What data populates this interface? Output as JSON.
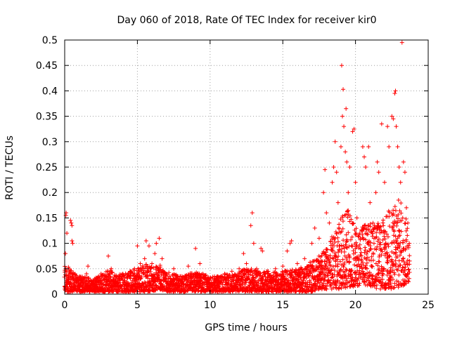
{
  "chart_data": {
    "type": "scatter",
    "title": "Day 060 of 2018, Rate Of TEC Index for receiver kir0",
    "xlabel": "GPS time / hours",
    "ylabel": "ROTI / TECUs",
    "xlim": [
      0,
      25
    ],
    "ylim": [
      0,
      0.5
    ],
    "grid": true,
    "marker": "+",
    "color": "#ff0000",
    "x_ticks": [
      0,
      5,
      10,
      15,
      20,
      25
    ],
    "x_tick_labels": [
      "0",
      "5",
      "10",
      "15",
      "20",
      "25"
    ],
    "y_ticks": [
      0,
      0.05,
      0.1,
      0.15,
      0.2,
      0.25,
      0.3,
      0.35,
      0.4,
      0.45,
      0.5
    ],
    "y_tick_labels": [
      "0",
      "0.05",
      "0.1",
      "0.15",
      "0.2",
      "0.25",
      "0.3",
      "0.35",
      "0.4",
      "0.45",
      "0.5"
    ],
    "series": [
      {
        "name": "ROTI",
        "points": [
          [
            0.05,
            0.08
          ],
          [
            0.08,
            0.155
          ],
          [
            0.1,
            0.16
          ],
          [
            0.15,
            0.12
          ],
          [
            0.2,
            0.03
          ],
          [
            0.3,
            0.05
          ],
          [
            0.4,
            0.145
          ],
          [
            0.45,
            0.14
          ],
          [
            0.5,
            0.135
          ],
          [
            0.5,
            0.105
          ],
          [
            0.55,
            0.1
          ],
          [
            0.7,
            0.04
          ],
          [
            1.0,
            0.03
          ],
          [
            1.5,
            0.04
          ],
          [
            1.6,
            0.055
          ],
          [
            2.0,
            0.025
          ],
          [
            2.5,
            0.04
          ],
          [
            3.0,
            0.075
          ],
          [
            3.2,
            0.05
          ],
          [
            3.5,
            0.03
          ],
          [
            4.0,
            0.04
          ],
          [
            4.5,
            0.045
          ],
          [
            4.8,
            0.05
          ],
          [
            5.0,
            0.095
          ],
          [
            5.2,
            0.06
          ],
          [
            5.5,
            0.07
          ],
          [
            5.6,
            0.105
          ],
          [
            5.8,
            0.095
          ],
          [
            6.0,
            0.06
          ],
          [
            6.2,
            0.08
          ],
          [
            6.3,
            0.1
          ],
          [
            6.5,
            0.11
          ],
          [
            6.7,
            0.07
          ],
          [
            7.0,
            0.04
          ],
          [
            7.5,
            0.05
          ],
          [
            8.0,
            0.035
          ],
          [
            8.5,
            0.055
          ],
          [
            9.0,
            0.09
          ],
          [
            9.3,
            0.06
          ],
          [
            9.5,
            0.04
          ],
          [
            10.0,
            0.03
          ],
          [
            10.5,
            0.035
          ],
          [
            11.0,
            0.04
          ],
          [
            11.5,
            0.045
          ],
          [
            12.0,
            0.05
          ],
          [
            12.3,
            0.08
          ],
          [
            12.5,
            0.06
          ],
          [
            12.8,
            0.135
          ],
          [
            12.9,
            0.16
          ],
          [
            13.0,
            0.1
          ],
          [
            13.2,
            0.05
          ],
          [
            13.5,
            0.09
          ],
          [
            13.6,
            0.085
          ],
          [
            14.0,
            0.045
          ],
          [
            14.5,
            0.05
          ],
          [
            15.0,
            0.055
          ],
          [
            15.3,
            0.085
          ],
          [
            15.5,
            0.1
          ],
          [
            15.6,
            0.105
          ],
          [
            16.0,
            0.06
          ],
          [
            16.5,
            0.07
          ],
          [
            17.0,
            0.1
          ],
          [
            17.2,
            0.13
          ],
          [
            17.5,
            0.11
          ],
          [
            17.8,
            0.2
          ],
          [
            17.9,
            0.245
          ],
          [
            18.0,
            0.16
          ],
          [
            18.2,
            0.14
          ],
          [
            18.4,
            0.22
          ],
          [
            18.5,
            0.25
          ],
          [
            18.6,
            0.3
          ],
          [
            18.7,
            0.24
          ],
          [
            18.8,
            0.18
          ],
          [
            19.0,
            0.29
          ],
          [
            19.05,
            0.45
          ],
          [
            19.1,
            0.35
          ],
          [
            19.15,
            0.403
          ],
          [
            19.2,
            0.33
          ],
          [
            19.3,
            0.28
          ],
          [
            19.35,
            0.365
          ],
          [
            19.4,
            0.26
          ],
          [
            19.5,
            0.2
          ],
          [
            19.6,
            0.25
          ],
          [
            19.8,
            0.32
          ],
          [
            19.9,
            0.325
          ],
          [
            20.0,
            0.22
          ],
          [
            20.1,
            0.15
          ],
          [
            20.3,
            0.12
          ],
          [
            20.5,
            0.29
          ],
          [
            20.6,
            0.27
          ],
          [
            20.7,
            0.25
          ],
          [
            20.9,
            0.29
          ],
          [
            21.0,
            0.18
          ],
          [
            21.2,
            0.14
          ],
          [
            21.4,
            0.2
          ],
          [
            21.5,
            0.26
          ],
          [
            21.6,
            0.24
          ],
          [
            21.8,
            0.335
          ],
          [
            22.0,
            0.22
          ],
          [
            22.2,
            0.33
          ],
          [
            22.3,
            0.29
          ],
          [
            22.5,
            0.35
          ],
          [
            22.6,
            0.345
          ],
          [
            22.7,
            0.395
          ],
          [
            22.75,
            0.4
          ],
          [
            22.8,
            0.33
          ],
          [
            22.9,
            0.29
          ],
          [
            23.0,
            0.25
          ],
          [
            23.1,
            0.22
          ],
          [
            23.2,
            0.495
          ],
          [
            23.3,
            0.26
          ],
          [
            23.4,
            0.24
          ],
          [
            23.5,
            0.17
          ],
          [
            23.6,
            0.14
          ],
          [
            23.7,
            0.1
          ]
        ],
        "density_profile": [
          [
            0.0,
            0.005,
            0.055
          ],
          [
            0.25,
            0.005,
            0.06
          ],
          [
            0.5,
            0.005,
            0.045
          ],
          [
            0.75,
            0.005,
            0.04
          ],
          [
            1.0,
            0.005,
            0.035
          ],
          [
            1.5,
            0.005,
            0.035
          ],
          [
            2.0,
            0.005,
            0.03
          ],
          [
            2.5,
            0.005,
            0.04
          ],
          [
            3.0,
            0.005,
            0.05
          ],
          [
            3.5,
            0.005,
            0.04
          ],
          [
            4.0,
            0.005,
            0.04
          ],
          [
            4.5,
            0.005,
            0.045
          ],
          [
            5.0,
            0.005,
            0.05
          ],
          [
            5.5,
            0.005,
            0.06
          ],
          [
            6.0,
            0.005,
            0.055
          ],
          [
            6.5,
            0.01,
            0.06
          ],
          [
            7.0,
            0.005,
            0.045
          ],
          [
            7.5,
            0.005,
            0.04
          ],
          [
            8.0,
            0.005,
            0.035
          ],
          [
            8.5,
            0.005,
            0.04
          ],
          [
            9.0,
            0.005,
            0.045
          ],
          [
            9.5,
            0.005,
            0.04
          ],
          [
            10.0,
            0.005,
            0.035
          ],
          [
            10.5,
            0.005,
            0.035
          ],
          [
            11.0,
            0.005,
            0.04
          ],
          [
            11.5,
            0.005,
            0.04
          ],
          [
            12.0,
            0.005,
            0.045
          ],
          [
            12.5,
            0.005,
            0.05
          ],
          [
            13.0,
            0.005,
            0.05
          ],
          [
            13.5,
            0.005,
            0.045
          ],
          [
            14.0,
            0.005,
            0.045
          ],
          [
            14.5,
            0.005,
            0.045
          ],
          [
            15.0,
            0.005,
            0.045
          ],
          [
            15.5,
            0.005,
            0.05
          ],
          [
            16.0,
            0.005,
            0.05
          ],
          [
            16.5,
            0.005,
            0.055
          ],
          [
            17.0,
            0.005,
            0.065
          ],
          [
            17.5,
            0.01,
            0.075
          ],
          [
            18.0,
            0.01,
            0.09
          ],
          [
            18.5,
            0.01,
            0.12
          ],
          [
            19.0,
            0.01,
            0.15
          ],
          [
            19.5,
            0.015,
            0.17
          ],
          [
            20.0,
            0.015,
            0.13
          ],
          [
            20.5,
            0.02,
            0.14
          ],
          [
            21.0,
            0.015,
            0.14
          ],
          [
            21.5,
            0.01,
            0.14
          ],
          [
            22.0,
            0.01,
            0.15
          ],
          [
            22.5,
            0.01,
            0.18
          ],
          [
            23.0,
            0.01,
            0.19
          ],
          [
            23.5,
            0.02,
            0.15
          ],
          [
            23.75,
            0.025,
            0.09
          ]
        ]
      }
    ]
  }
}
